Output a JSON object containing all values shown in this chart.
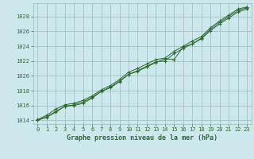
{
  "background_color": "#cce8ec",
  "grid_color": "#99bbbb",
  "line_color": "#2d6a2d",
  "marker_color": "#2d6a2d",
  "title": "Graphe pression niveau de la mer (hPa)",
  "xlim": [
    -0.5,
    23.5
  ],
  "ylim": [
    1013.5,
    1029.8
  ],
  "yticks": [
    1014,
    1016,
    1018,
    1020,
    1022,
    1024,
    1026,
    1028
  ],
  "xticks": [
    0,
    1,
    2,
    3,
    4,
    5,
    6,
    7,
    8,
    9,
    10,
    11,
    12,
    13,
    14,
    15,
    16,
    17,
    18,
    19,
    20,
    21,
    22,
    23
  ],
  "series": [
    [
      1014.0,
      1014.5,
      1015.2,
      1015.9,
      1016.1,
      1016.5,
      1017.1,
      1017.9,
      1018.5,
      1019.3,
      1020.2,
      1020.6,
      1021.2,
      1021.8,
      1022.3,
      1022.2,
      1023.9,
      1024.3,
      1025.1,
      1026.3,
      1027.2,
      1028.0,
      1028.8,
      1029.2
    ],
    [
      1014.0,
      1014.4,
      1015.1,
      1015.9,
      1016.0,
      1016.3,
      1017.0,
      1017.9,
      1018.4,
      1019.2,
      1020.2,
      1020.7,
      1021.3,
      1021.9,
      1022.0,
      1023.0,
      1023.7,
      1024.3,
      1025.0,
      1026.1,
      1027.0,
      1027.8,
      1028.6,
      1029.0
    ],
    [
      1014.1,
      1014.7,
      1015.5,
      1016.1,
      1016.3,
      1016.7,
      1017.3,
      1018.1,
      1018.7,
      1019.5,
      1020.5,
      1021.0,
      1021.6,
      1022.2,
      1022.4,
      1023.3,
      1024.0,
      1024.7,
      1025.3,
      1026.5,
      1027.4,
      1028.2,
      1029.0,
      1029.3
    ]
  ]
}
